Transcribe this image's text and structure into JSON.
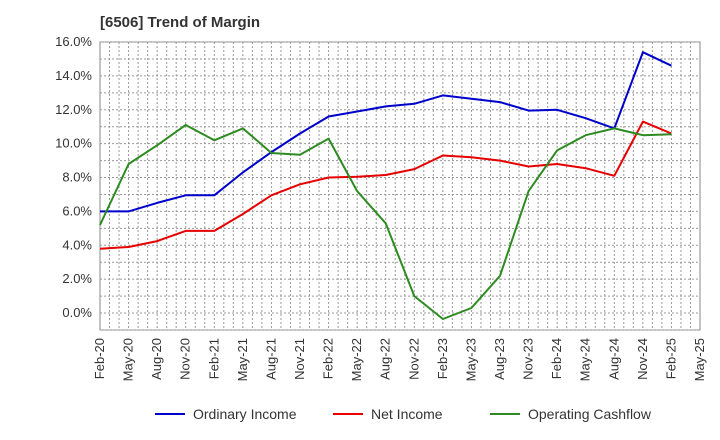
{
  "chart_data": {
    "type": "line",
    "title": "[6506]  Trend of Margin",
    "xlabel": "",
    "ylabel": "",
    "ylim": [
      -1.0,
      16.0
    ],
    "y_ticks": [
      0.0,
      2.0,
      4.0,
      6.0,
      8.0,
      10.0,
      12.0,
      14.0,
      16.0
    ],
    "y_tick_labels": [
      "0.0%",
      "2.0%",
      "4.0%",
      "6.0%",
      "8.0%",
      "10.0%",
      "12.0%",
      "14.0%",
      "16.0%"
    ],
    "x_tick_labels": [
      "Feb-20",
      "May-20",
      "Aug-20",
      "Nov-20",
      "Feb-21",
      "May-21",
      "Aug-21",
      "Nov-21",
      "Feb-22",
      "May-22",
      "Aug-22",
      "Nov-22",
      "Feb-23",
      "May-23",
      "Aug-23",
      "Nov-23",
      "Feb-24",
      "May-24",
      "Aug-24",
      "Nov-24",
      "Feb-25",
      "May-25"
    ],
    "grid": true,
    "legend_position": "bottom",
    "series": [
      {
        "name": "Ordinary Income",
        "color": "#0000cc",
        "values": [
          6.0,
          6.0,
          6.5,
          6.95,
          6.95,
          8.3,
          9.5,
          10.6,
          11.6,
          11.9,
          12.2,
          12.35,
          12.85,
          12.65,
          12.45,
          11.95,
          12.0,
          11.5,
          10.9,
          15.4,
          14.6
        ]
      },
      {
        "name": "Net Income",
        "color": "#e60000",
        "values": [
          3.8,
          3.9,
          4.25,
          4.85,
          4.85,
          5.85,
          6.95,
          7.6,
          8.0,
          8.05,
          8.15,
          8.5,
          9.3,
          9.2,
          9.0,
          8.65,
          8.8,
          8.55,
          8.1,
          11.3,
          10.6
        ]
      },
      {
        "name": "Operating Cashflow",
        "color": "#2e8b22",
        "values": [
          5.2,
          8.8,
          9.9,
          11.1,
          10.2,
          10.9,
          9.45,
          9.35,
          10.3,
          7.2,
          5.3,
          1.0,
          -0.35,
          0.3,
          2.2,
          7.2,
          9.6,
          10.5,
          10.9,
          10.5,
          10.55
        ]
      }
    ]
  }
}
